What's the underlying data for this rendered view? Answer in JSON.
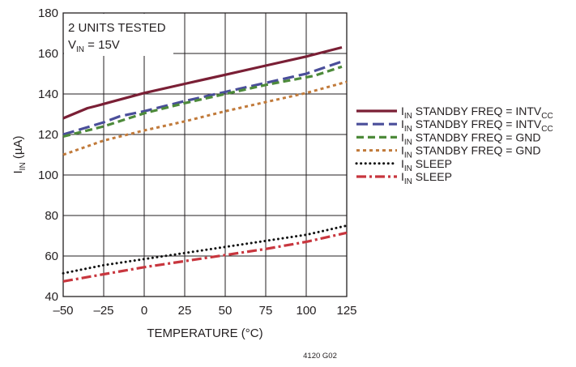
{
  "chart_data": {
    "type": "line",
    "xlabel": "TEMPERATURE (°C)",
    "ylabel": {
      "main": "I",
      "sub": "IN",
      "unit": " (µA)"
    },
    "xlim": [
      -50,
      125
    ],
    "ylim": [
      40,
      180
    ],
    "xticks": [
      -50,
      -25,
      0,
      25,
      50,
      75,
      100,
      125
    ],
    "xtick_labels": [
      "–50",
      "–25",
      "0",
      "25",
      "50",
      "75",
      "100",
      "125"
    ],
    "yticks": [
      40,
      60,
      80,
      100,
      120,
      140,
      160,
      180
    ],
    "grid": true,
    "legend_position": "right",
    "annotation": {
      "line1": "2 UNITS TESTED",
      "line2": {
        "main": "V",
        "sub": "IN",
        "rest": " = 15V"
      }
    },
    "footer_code": "4120 G02",
    "series": [
      {
        "name": "IIN STANDBY FREQ = INTVCC",
        "label": {
          "main": "I",
          "sub": "IN",
          "mid": " STANDBY FREQ = INTV",
          "sub2": "CC"
        },
        "color": "#7a1f35",
        "style": "solid",
        "x": [
          -50,
          -35,
          -30,
          0,
          25,
          50,
          75,
          100,
          122
        ],
        "y": [
          128,
          133,
          134,
          140.5,
          145,
          149.5,
          154,
          158.5,
          163
        ]
      },
      {
        "name": "IIN STANDBY FREQ = INTVCC",
        "label": {
          "main": "I",
          "sub": "IN",
          "mid": " STANDBY FREQ = INTV",
          "sub2": "CC"
        },
        "color": "#4a4e9a",
        "style": "longdash",
        "x": [
          -50,
          -25,
          -15,
          0,
          25,
          50,
          75,
          100,
          122
        ],
        "y": [
          120,
          126,
          129,
          131.5,
          136.5,
          141,
          145.5,
          150,
          156
        ]
      },
      {
        "name": "IIN STANDBY FREQ = GND",
        "label": {
          "main": "I",
          "sub": "IN",
          "mid": " STANDBY FREQ = GND",
          "sub2": ""
        },
        "color": "#4d8a3a",
        "style": "dash",
        "x": [
          -50,
          -25,
          0,
          25,
          50,
          75,
          85,
          105,
          122
        ],
        "y": [
          119,
          124,
          130.5,
          135.5,
          140,
          144.5,
          146,
          149,
          153.5
        ]
      },
      {
        "name": "IIN STANDBY FREQ = GND",
        "label": {
          "main": "I",
          "sub": "IN",
          "mid": " STANDBY FREQ = GND",
          "sub2": ""
        },
        "color": "#c17a3a",
        "style": "shortdash",
        "x": [
          -50,
          -25,
          0,
          25,
          50,
          75,
          100,
          125
        ],
        "y": [
          110,
          117,
          122,
          126.5,
          131.5,
          136,
          140.5,
          146
        ]
      },
      {
        "name": "IIN SLEEP",
        "label": {
          "main": "I",
          "sub": "IN",
          "mid": " SLEEP",
          "sub2": ""
        },
        "color": "#111111",
        "style": "dot",
        "x": [
          -50,
          -25,
          0,
          25,
          50,
          75,
          100,
          125
        ],
        "y": [
          51.5,
          55.5,
          58.5,
          61.5,
          64.5,
          67.5,
          70.5,
          75
        ]
      },
      {
        "name": "IIN SLEEP",
        "label": {
          "main": "I",
          "sub": "IN",
          "mid": " SLEEP",
          "sub2": ""
        },
        "color": "#c8363e",
        "style": "dashdot",
        "x": [
          -50,
          -25,
          0,
          25,
          50,
          75,
          100,
          125
        ],
        "y": [
          47.5,
          51,
          54.5,
          57.5,
          60.5,
          63.5,
          67,
          71.5
        ]
      }
    ]
  }
}
